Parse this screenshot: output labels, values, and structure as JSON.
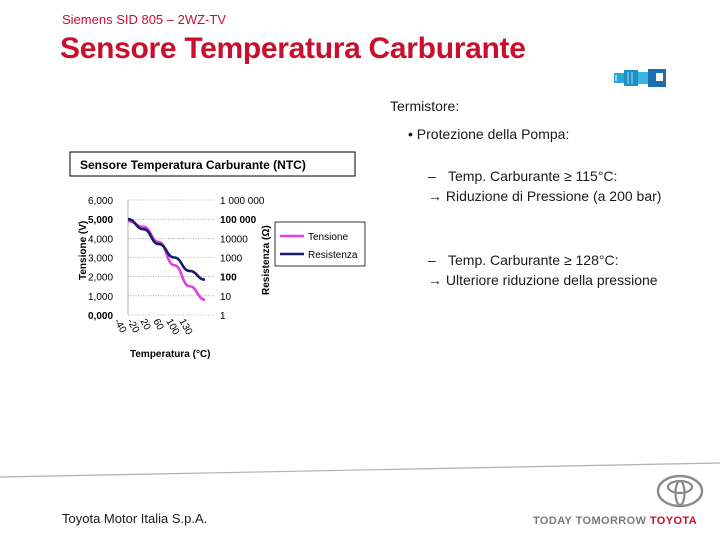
{
  "header": {
    "subtitle": "Siemens SID 805 – 2WZ-TV",
    "title": "Sensore Temperatura Carburante"
  },
  "content": {
    "section_label": "Termistore:",
    "bullet": "• Protezione della Pompa:",
    "items": [
      {
        "dash": "–",
        "line1": "Temp. Carburante ≥ 115°C:",
        "line2": "→ Riduzione di Pressione (a 200 bar)"
      },
      {
        "dash": "–",
        "line1": "Temp. Carburante ≥ 128°C:",
        "line2": "→ Ulteriore riduzione della pressione"
      }
    ]
  },
  "footer": {
    "company": "Toyota Motor Italia S.p.A.",
    "tagline_today": "TODAY",
    "tagline_tomorrow": "TOMORROW",
    "tagline_brand": "TOYOTA"
  },
  "colors": {
    "brand_red": "#c8102e",
    "tension_series": "#e040e0",
    "resistance_series": "#1a1a6e"
  },
  "icons": {
    "sensor": "fuel-temperature-sensor-icon",
    "logo": "toyota-logo"
  },
  "chart_data": {
    "type": "line",
    "title": "Sensore Temperatura Carburante (NTC)",
    "xlabel": "Temperatura (°C)",
    "ylabel_left": "Tensione (V)",
    "ylabel_right": "Resistenza (Ω)",
    "x_ticks": [
      "-40",
      "-20",
      "20",
      "60",
      "100",
      "130"
    ],
    "y_left_ticks": [
      "6,000",
      "5,000",
      "4,000",
      "3,000",
      "2,000",
      "1,000",
      "0,000"
    ],
    "y_right_ticks": [
      "1 000 000",
      "100 000",
      "10000",
      "1000",
      "100",
      "10",
      "1"
    ],
    "ylim_left": [
      0,
      6
    ],
    "y_right_scale": "log",
    "ylim_right": [
      1,
      1000000
    ],
    "legend_position": "right",
    "grid": true,
    "series": [
      {
        "name": "Tensione",
        "axis": "left",
        "x": [
          -40,
          -20,
          20,
          60,
          100,
          130
        ],
        "values": [
          4.9,
          4.6,
          3.8,
          2.6,
          1.5,
          0.8
        ]
      },
      {
        "name": "Resistenza",
        "axis": "right",
        "x": [
          -40,
          -20,
          20,
          60,
          100,
          130
        ],
        "values": [
          100000,
          30000,
          5000,
          1000,
          200,
          70
        ]
      }
    ]
  }
}
